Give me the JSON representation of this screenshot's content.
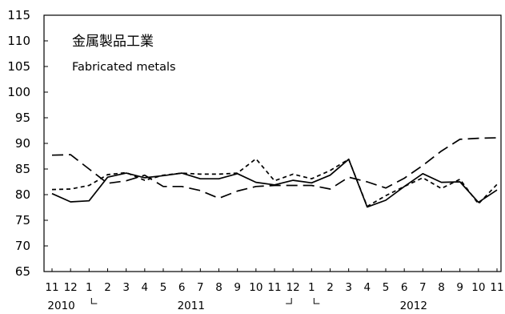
{
  "chart_data": {
    "type": "line",
    "title": "金属製品工業",
    "subtitle": "Fabricated metals",
    "ylim": [
      65,
      115
    ],
    "yticks": [
      "115",
      "110",
      "105",
      "100",
      "95",
      "90",
      "85",
      "80",
      "75",
      "70",
      "65"
    ],
    "categories": [
      "11",
      "12",
      "1",
      "2",
      "3",
      "4",
      "5",
      "6",
      "7",
      "8",
      "9",
      "10",
      "11",
      "12",
      "1",
      "2",
      "3",
      "4",
      "5",
      "6",
      "7",
      "8",
      "9",
      "10",
      "11"
    ],
    "years": [
      {
        "label": "2010",
        "index": 0.5
      },
      {
        "label": "2011",
        "index": 7.5
      },
      {
        "label": "2012",
        "index": 19.5
      }
    ],
    "year_brackets": [
      {
        "type": "start",
        "index": 2
      },
      {
        "type": "end",
        "index": 13
      },
      {
        "type": "start",
        "index": 14
      }
    ],
    "series": [
      {
        "style": "solid",
        "values": [
          80.2,
          78.6,
          78.8,
          83.4,
          84.2,
          83.3,
          83.7,
          84.2,
          83.1,
          83.1,
          84.1,
          82.4,
          81.9,
          82.8,
          82.3,
          83.8,
          86.9,
          77.6,
          78.9,
          81.6,
          84.1,
          82.4,
          82.5,
          78.5,
          80.9
        ]
      },
      {
        "style": "short-dash",
        "values": [
          81.0,
          81.1,
          81.8,
          83.9,
          84.3,
          82.8,
          83.8,
          84.2,
          84.0,
          84.0,
          84.2,
          87.0,
          82.7,
          84.0,
          83.1,
          84.7,
          86.9,
          77.7,
          79.8,
          81.6,
          83.3,
          81.2,
          83.0,
          78.2,
          82.0
        ]
      },
      {
        "style": "long-dash",
        "values": [
          87.7,
          87.8,
          85.0,
          82.2,
          82.7,
          83.8,
          81.6,
          81.6,
          80.8,
          79.3,
          80.7,
          81.6,
          81.8,
          81.8,
          81.8,
          81.1,
          83.4,
          82.5,
          81.3,
          83.2,
          85.7,
          88.5,
          90.8,
          91.0,
          91.1
        ]
      }
    ]
  }
}
